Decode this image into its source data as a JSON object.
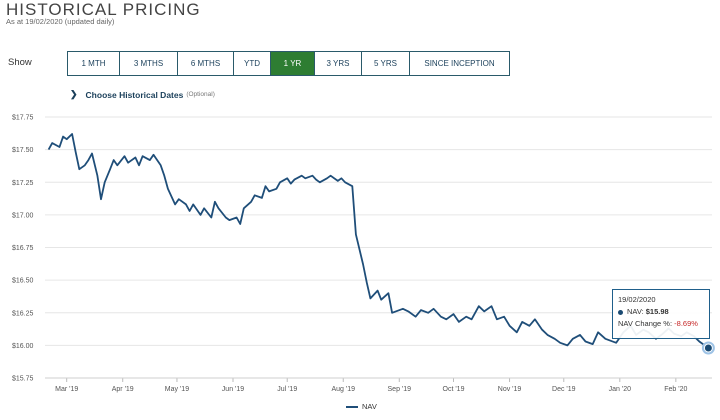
{
  "header": {
    "title": "HISTORICAL PRICING",
    "subtitle": "As at 19/02/2020 (updated daily)"
  },
  "controls": {
    "show_label": "Show",
    "tabs": [
      {
        "label": "1 MTH",
        "active": false
      },
      {
        "label": "3 MTHS",
        "active": false
      },
      {
        "label": "6 MTHS",
        "active": false
      },
      {
        "label": "YTD",
        "active": false
      },
      {
        "label": "1 YR",
        "active": true
      },
      {
        "label": "3 YRS",
        "active": false
      },
      {
        "label": "5 YRS",
        "active": false
      },
      {
        "label": "SINCE INCEPTION",
        "active": false
      }
    ],
    "choose_label": "Choose Historical Dates",
    "choose_optional": "(Optional)"
  },
  "tooltip": {
    "date": "19/02/2020",
    "nav_label": "NAV:",
    "nav_value": "$15.98",
    "change_label": "NAV Change %:",
    "change_value": "-8.69%"
  },
  "colors": {
    "line": "#1f4e79",
    "active_tab": "#2e7d32",
    "negative": "#c62828"
  },
  "chart_data": {
    "type": "line",
    "xlabel": "",
    "ylabel": "",
    "ylim": [
      15.75,
      17.75
    ],
    "yticks": [
      "$17.75",
      "$17.50",
      "$17.25",
      "$17.00",
      "$16.75",
      "$16.50",
      "$16.25",
      "$16.00",
      "$15.75"
    ],
    "xtick_labels": [
      "Mar '19",
      "Apr '19",
      "May '19",
      "Jun '19",
      "Jul '19",
      "Aug '19",
      "Sep '19",
      "Oct '19",
      "Nov '19",
      "Dec '19",
      "Jan '20",
      "Feb '20"
    ],
    "legend": "bottom",
    "grid": "horizontal",
    "series": [
      {
        "name": "NAV",
        "x": [
          "2019-02-19",
          "2019-02-21",
          "2019-02-25",
          "2019-02-27",
          "2019-03-01",
          "2019-03-04",
          "2019-03-06",
          "2019-03-08",
          "2019-03-11",
          "2019-03-13",
          "2019-03-15",
          "2019-03-18",
          "2019-03-20",
          "2019-03-22",
          "2019-03-25",
          "2019-03-27",
          "2019-03-29",
          "2019-04-02",
          "2019-04-04",
          "2019-04-08",
          "2019-04-10",
          "2019-04-12",
          "2019-04-16",
          "2019-04-18",
          "2019-04-22",
          "2019-04-24",
          "2019-04-26",
          "2019-04-30",
          "2019-05-02",
          "2019-05-06",
          "2019-05-08",
          "2019-05-10",
          "2019-05-14",
          "2019-05-16",
          "2019-05-20",
          "2019-05-22",
          "2019-05-24",
          "2019-05-28",
          "2019-05-30",
          "2019-06-03",
          "2019-06-05",
          "2019-06-07",
          "2019-06-11",
          "2019-06-13",
          "2019-06-17",
          "2019-06-19",
          "2019-06-21",
          "2019-06-25",
          "2019-06-27",
          "2019-07-01",
          "2019-07-03",
          "2019-07-05",
          "2019-07-09",
          "2019-07-11",
          "2019-07-15",
          "2019-07-17",
          "2019-07-19",
          "2019-07-23",
          "2019-07-25",
          "2019-07-29",
          "2019-07-31",
          "2019-08-02",
          "2019-08-06",
          "2019-08-08",
          "2019-08-12",
          "2019-08-14",
          "2019-08-16",
          "2019-08-20",
          "2019-08-22",
          "2019-08-26",
          "2019-08-28",
          "2019-09-03",
          "2019-09-06",
          "2019-09-10",
          "2019-09-13",
          "2019-09-17",
          "2019-09-20",
          "2019-09-24",
          "2019-09-27",
          "2019-10-01",
          "2019-10-04",
          "2019-10-08",
          "2019-10-11",
          "2019-10-15",
          "2019-10-18",
          "2019-10-22",
          "2019-10-25",
          "2019-10-29",
          "2019-11-01",
          "2019-11-05",
          "2019-11-08",
          "2019-11-12",
          "2019-11-15",
          "2019-11-19",
          "2019-11-22",
          "2019-11-26",
          "2019-11-29",
          "2019-12-03",
          "2019-12-06",
          "2019-12-10",
          "2019-12-13",
          "2019-12-17",
          "2019-12-20",
          "2019-12-24",
          "2019-12-30",
          "2020-01-03",
          "2020-01-07",
          "2020-01-10",
          "2020-01-14",
          "2020-01-17",
          "2020-01-21",
          "2020-01-24",
          "2020-01-28",
          "2020-01-31",
          "2020-02-04",
          "2020-02-07",
          "2020-02-11",
          "2020-02-14",
          "2020-02-19"
        ],
        "values": [
          17.5,
          17.55,
          17.52,
          17.6,
          17.58,
          17.62,
          17.48,
          17.35,
          17.38,
          17.42,
          17.47,
          17.3,
          17.12,
          17.25,
          17.35,
          17.42,
          17.38,
          17.45,
          17.4,
          17.44,
          17.38,
          17.45,
          17.42,
          17.46,
          17.38,
          17.3,
          17.2,
          17.08,
          17.12,
          17.08,
          17.03,
          17.08,
          17.0,
          17.05,
          16.98,
          17.1,
          17.05,
          16.98,
          16.96,
          16.98,
          16.93,
          17.05,
          17.1,
          17.15,
          17.13,
          17.22,
          17.18,
          17.2,
          17.25,
          17.28,
          17.24,
          17.27,
          17.3,
          17.28,
          17.3,
          17.27,
          17.25,
          17.28,
          17.3,
          17.26,
          17.28,
          17.25,
          17.22,
          16.85,
          16.62,
          16.48,
          16.36,
          16.42,
          16.35,
          16.4,
          16.25,
          16.28,
          16.26,
          16.22,
          16.27,
          16.25,
          16.28,
          16.22,
          16.2,
          16.24,
          16.18,
          16.22,
          16.2,
          16.3,
          16.26,
          16.3,
          16.2,
          16.22,
          16.15,
          16.1,
          16.18,
          16.15,
          16.2,
          16.12,
          16.08,
          16.05,
          16.02,
          16.0,
          16.05,
          16.08,
          16.03,
          16.01,
          16.1,
          16.05,
          16.02,
          16.1,
          16.15,
          16.08,
          16.12,
          16.1,
          16.05,
          16.08,
          16.13,
          16.09,
          16.07,
          16.1,
          16.07,
          16.03,
          15.98
        ]
      }
    ]
  }
}
